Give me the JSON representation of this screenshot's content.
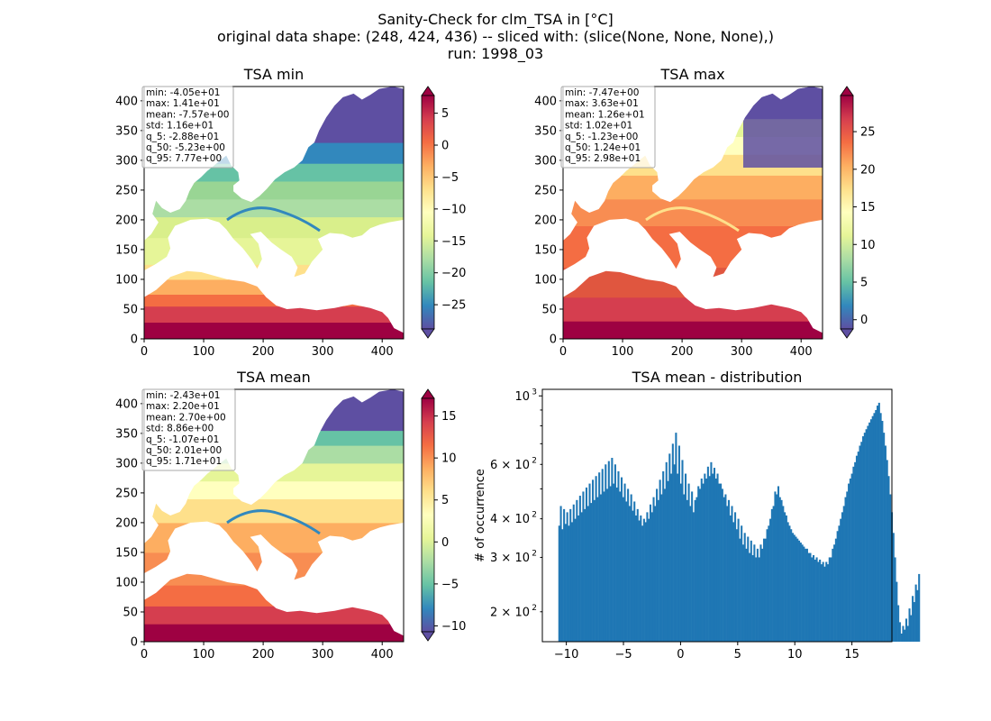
{
  "figure": {
    "title_lines": [
      "Sanity-Check for clm_TSA in [°C]",
      "original data shape: (248, 424, 436) -- sliced with: (slice(None, None, None),)",
      "run: 1998_03"
    ]
  },
  "chart_data": [
    {
      "type": "heatmap",
      "title": "TSA min",
      "xlim": [
        0,
        436
      ],
      "ylim": [
        0,
        424
      ],
      "xticks": [
        "0",
        "100",
        "200",
        "300",
        "400"
      ],
      "yticks": [
        "0",
        "50",
        "100",
        "150",
        "200",
        "250",
        "300",
        "350",
        "400"
      ],
      "colorbar": {
        "cmap": "Spectral_r",
        "range": [
          -28.8,
          7.77
        ],
        "ticks": [
          "5",
          "0",
          "−5",
          "−10",
          "−15",
          "−20",
          "−25"
        ],
        "tick_values": [
          5,
          0,
          -5,
          -10,
          -15,
          -20,
          -25
        ]
      },
      "stats": [
        "min: -4.05e+01",
        "max: 1.41e+01",
        "mean: -7.57e+00",
        "std: 1.16e+01",
        "q_5: -2.88e+01",
        "q_50: -5.23e+00",
        "q_95: 7.77e+00"
      ]
    },
    {
      "type": "heatmap",
      "title": "TSA max",
      "xlim": [
        0,
        436
      ],
      "ylim": [
        0,
        424
      ],
      "xticks": [
        "0",
        "100",
        "200",
        "300",
        "400"
      ],
      "yticks": [
        "0",
        "50",
        "100",
        "150",
        "200",
        "250",
        "300",
        "350",
        "400"
      ],
      "colorbar": {
        "cmap": "Spectral_r",
        "range": [
          -1.23,
          29.8
        ],
        "ticks": [
          "25",
          "20",
          "15",
          "10",
          "5",
          "0"
        ],
        "tick_values": [
          25,
          20,
          15,
          10,
          5,
          0
        ]
      },
      "stats": [
        "min: -7.47e+00",
        "max: 3.63e+01",
        "mean: 1.26e+01",
        "std: 1.02e+01",
        "q_5: -1.23e+00",
        "q_50: 1.24e+01",
        "q_95: 2.98e+01"
      ]
    },
    {
      "type": "heatmap",
      "title": "TSA mean",
      "xlim": [
        0,
        436
      ],
      "ylim": [
        0,
        424
      ],
      "xticks": [
        "0",
        "100",
        "200",
        "300",
        "400"
      ],
      "yticks": [
        "0",
        "50",
        "100",
        "150",
        "200",
        "250",
        "300",
        "350",
        "400"
      ],
      "colorbar": {
        "cmap": "Spectral_r",
        "range": [
          -10.7,
          17.1
        ],
        "ticks": [
          "15",
          "10",
          "5",
          "0",
          "−5",
          "−10"
        ],
        "tick_values": [
          15,
          10,
          5,
          0,
          -5,
          -10
        ]
      },
      "stats": [
        "min: -2.43e+01",
        "max: 2.20e+01",
        "mean: 2.70e+00",
        "std: 8.86e+00",
        "q_5: -1.07e+01",
        "q_50: 2.01e+00",
        "q_95: 1.71e+01"
      ]
    },
    {
      "type": "bar",
      "title": "TSA mean - distribution",
      "ylabel": "# of occurrence",
      "yscale": "log",
      "xlim": [
        -12.1,
        18.5
      ],
      "ylim": [
        160,
        1050
      ],
      "xticks": [
        -10,
        -5,
        0,
        5,
        10,
        15
      ],
      "xtick_labels": [
        "−10",
        "−5",
        "0",
        "5",
        "10",
        "15"
      ],
      "yticks_major": [
        {
          "value": 1000,
          "label": "10",
          "exp": "3"
        }
      ],
      "yticks_labeled_minor": [
        {
          "value": 600,
          "mant": "6 × 10",
          "exp": "2"
        },
        {
          "value": 400,
          "mant": "4 × 10",
          "exp": "2"
        },
        {
          "value": 300,
          "mant": "3 × 10",
          "exp": "2"
        },
        {
          "value": 200,
          "mant": "2 × 10",
          "exp": "2"
        }
      ],
      "yticks_minor": [
        500,
        700,
        800,
        900
      ],
      "bin_start": -10.7,
      "bin_width": 0.14,
      "counts": [
        380,
        440,
        370,
        430,
        385,
        420,
        380,
        430,
        390,
        445,
        400,
        460,
        410,
        475,
        420,
        490,
        430,
        505,
        440,
        520,
        450,
        535,
        460,
        550,
        470,
        565,
        480,
        580,
        490,
        600,
        500,
        615,
        510,
        630,
        520,
        600,
        505,
        570,
        490,
        545,
        470,
        520,
        455,
        500,
        440,
        480,
        425,
        455,
        410,
        430,
        395,
        410,
        380,
        400,
        390,
        420,
        400,
        445,
        420,
        470,
        440,
        500,
        460,
        535,
        480,
        570,
        500,
        610,
        530,
        650,
        560,
        700,
        600,
        760,
        560,
        690,
        520,
        620,
        480,
        560,
        460,
        520,
        440,
        490,
        420,
        460,
        470,
        510,
        500,
        540,
        520,
        560,
        540,
        590,
        550,
        610,
        560,
        585,
        540,
        560,
        520,
        520,
        500,
        470,
        480,
        440,
        460,
        410,
        440,
        390,
        420,
        370,
        400,
        345,
        380,
        330,
        360,
        320,
        350,
        310,
        340,
        305,
        330,
        300,
        320,
        300,
        330,
        320,
        345,
        345,
        370,
        380,
        400,
        430,
        440,
        490,
        480,
        510,
        470,
        460,
        440,
        420,
        410,
        390,
        380,
        370,
        360,
        355,
        350,
        345,
        340,
        335,
        330,
        325,
        320,
        320,
        310,
        310,
        300,
        305,
        295,
        300,
        290,
        295,
        285,
        290,
        280,
        290,
        285,
        300,
        300,
        320,
        330,
        345,
        365,
        380,
        400,
        420,
        440,
        470,
        490,
        520,
        540,
        560,
        590,
        610,
        640,
        660,
        690,
        710,
        740,
        760,
        780,
        800,
        820,
        840,
        860,
        880,
        900,
        930,
        950,
        880,
        830,
        760,
        690,
        620,
        550,
        480,
        420,
        360,
        300,
        250,
        210,
        185,
        170,
        180,
        175,
        190,
        180,
        205,
        195,
        225,
        215,
        245,
        235,
        265
      ]
    }
  ]
}
